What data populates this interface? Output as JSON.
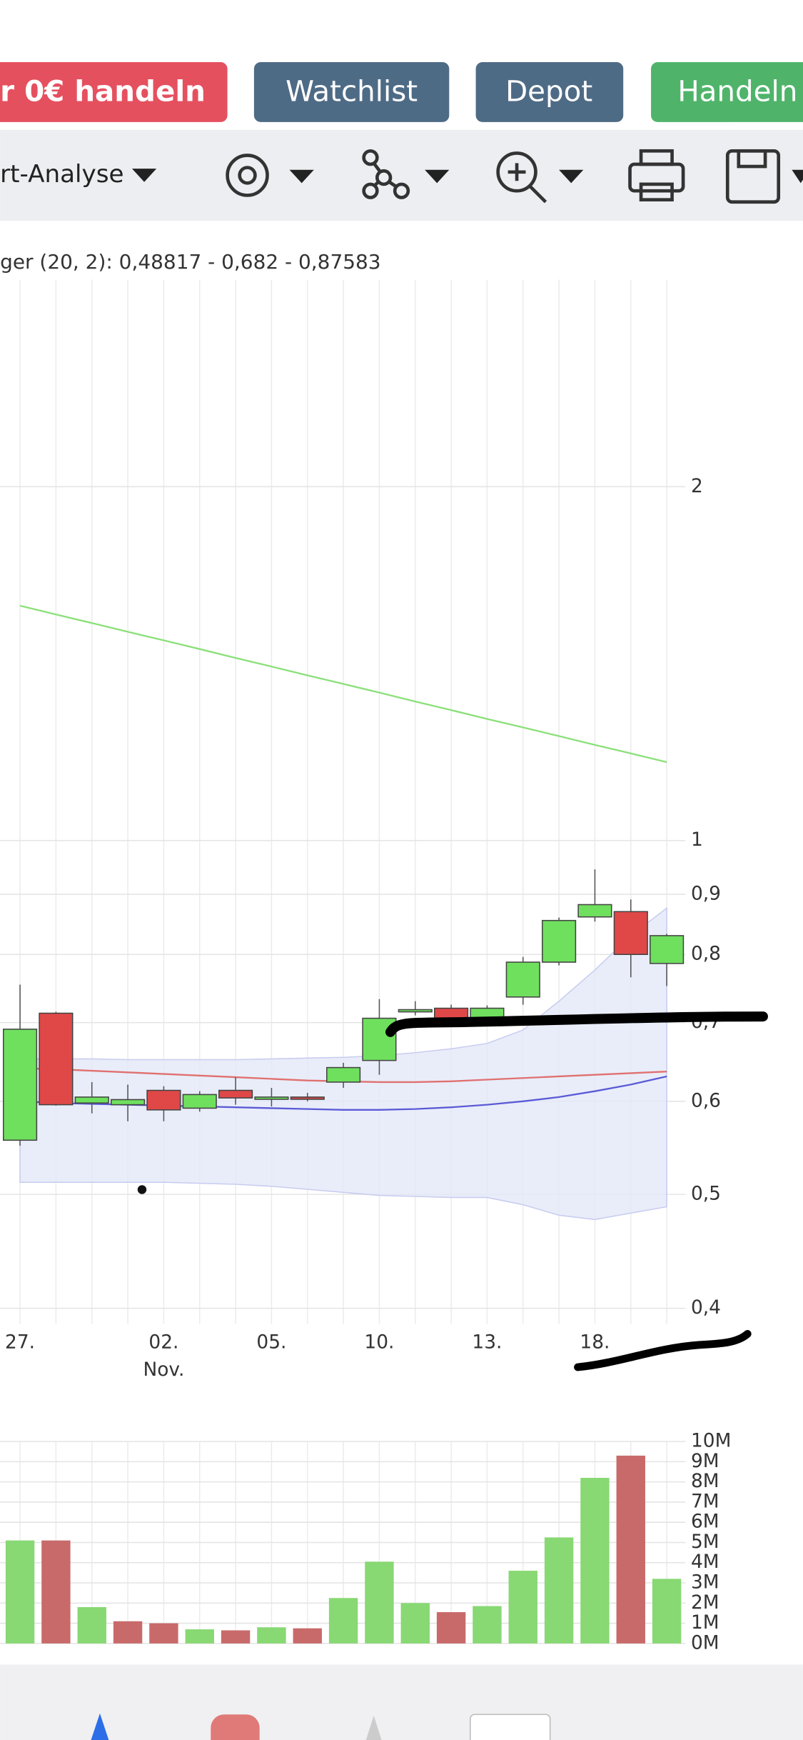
{
  "buttons": [
    "r 0€ handeln",
    "Watchlist",
    "Depot",
    "Handeln"
  ],
  "toolbar": {
    "menu": "rt-Analyse"
  },
  "indicator_label": "ger (20, 2): 0,48817 - 0,682 - 0,87583",
  "chart_data": [
    {
      "type": "candlestick",
      "categories": [
        "27.",
        null,
        null,
        null,
        "02.",
        null,
        null,
        "05.",
        null,
        null,
        "10.",
        null,
        null,
        "13.",
        null,
        null,
        "18.",
        null,
        null
      ],
      "month_label": "Nov.",
      "open": [
        0.556,
        0.713,
        0.598,
        0.596,
        0.613,
        0.592,
        0.613,
        0.604,
        0.605,
        0.623,
        0.65,
        0.715,
        0.72,
        0.705,
        0.736,
        0.788,
        0.861,
        0.87,
        0.786
      ],
      "high": [
        0.754,
        0.715,
        0.623,
        0.62,
        0.618,
        0.612,
        0.629,
        0.616,
        0.61,
        0.647,
        0.733,
        0.73,
        0.725,
        0.724,
        0.796,
        0.86,
        0.945,
        0.891,
        0.833
      ],
      "low": [
        0.55,
        0.595,
        0.586,
        0.577,
        0.577,
        0.588,
        0.596,
        0.594,
        0.6,
        0.616,
        0.632,
        0.71,
        0.695,
        0.7,
        0.725,
        0.783,
        0.853,
        0.765,
        0.752
      ],
      "close": [
        0.691,
        0.596,
        0.605,
        0.602,
        0.59,
        0.608,
        0.604,
        0.605,
        0.604,
        0.641,
        0.706,
        0.718,
        0.699,
        0.72,
        0.788,
        0.855,
        0.882,
        0.8,
        0.83
      ],
      "up_color": "#6fe05e",
      "down_color": "#e04848",
      "band": {
        "color": "#e4e8f8",
        "upper": [
          0.652,
          0.652,
          0.652,
          0.651,
          0.651,
          0.651,
          0.651,
          0.652,
          0.653,
          0.654,
          0.656,
          0.66,
          0.665,
          0.672,
          0.69,
          0.73,
          0.776,
          0.83,
          0.876
        ],
        "lower": [
          0.512,
          0.512,
          0.512,
          0.512,
          0.512,
          0.511,
          0.51,
          0.508,
          0.505,
          0.502,
          0.499,
          0.498,
          0.497,
          0.497,
          0.49,
          0.48,
          0.476,
          0.482,
          0.488
        ]
      },
      "lines": [
        {
          "color": "#8be07a",
          "values": [
            1.584,
            1.557,
            1.531,
            1.505,
            1.48,
            1.455,
            1.43,
            1.406,
            1.382,
            1.359,
            1.336,
            1.313,
            1.291,
            1.269,
            1.248,
            1.227,
            1.206,
            1.186,
            1.166
          ]
        },
        {
          "color": "#e07070",
          "values": [
            0.64,
            0.639,
            0.637,
            0.635,
            0.633,
            0.631,
            0.629,
            0.627,
            0.625,
            0.624,
            0.623,
            0.623,
            0.624,
            0.626,
            0.628,
            0.63,
            0.632,
            0.634,
            0.636
          ]
        },
        {
          "color": "#5b5bd6",
          "values": [
            0.6,
            0.598,
            0.597,
            0.596,
            0.595,
            0.594,
            0.593,
            0.592,
            0.591,
            0.59,
            0.59,
            0.591,
            0.593,
            0.596,
            0.6,
            0.605,
            0.612,
            0.62,
            0.63
          ]
        }
      ],
      "log": true,
      "grid": true,
      "ylim": [
        0.388,
        3
      ],
      "yticks": [
        {
          "value": 0.4,
          "label": "0,4"
        },
        {
          "value": 0.5,
          "label": "0,5"
        },
        {
          "value": 0.6,
          "label": "0,6"
        },
        {
          "value": 0.7,
          "label": "0,7"
        },
        {
          "value": 0.8,
          "label": "0,8"
        },
        {
          "value": 0.9,
          "label": "0,9"
        },
        1,
        2
      ]
    },
    {
      "type": "bar",
      "values": [
        5.1,
        5.1,
        1.8,
        1.1,
        1.0,
        0.7,
        0.65,
        0.8,
        0.75,
        2.25,
        4.05,
        2.0,
        1.55,
        1.85,
        3.6,
        5.25,
        8.2,
        9.3,
        3.2
      ],
      "colors": [
        "#88d873",
        "#c96a6a",
        "#88d873",
        "#c96a6a",
        "#c96a6a",
        "#88d873",
        "#c96a6a",
        "#88d873",
        "#c96a6a",
        "#88d873",
        "#88d873",
        "#88d873",
        "#c96a6a",
        "#88d873",
        "#88d873",
        "#88d873",
        "#88d873",
        "#c96a6a",
        "#88d873"
      ],
      "grid": true,
      "ylim": [
        0,
        10
      ],
      "yticks": [
        {
          "value": 0,
          "label": "0M"
        },
        {
          "value": 1,
          "label": "1M"
        },
        {
          "value": 2,
          "label": "2M"
        },
        {
          "value": 3,
          "label": "3M"
        },
        {
          "value": 4,
          "label": "4M"
        },
        {
          "value": 5,
          "label": "5M"
        },
        {
          "value": 6,
          "label": "6M"
        },
        {
          "value": 7,
          "label": "7M"
        },
        {
          "value": 8,
          "label": "8M"
        },
        {
          "value": 9,
          "label": "9M"
        },
        {
          "value": 10,
          "label": "10M"
        }
      ]
    }
  ]
}
